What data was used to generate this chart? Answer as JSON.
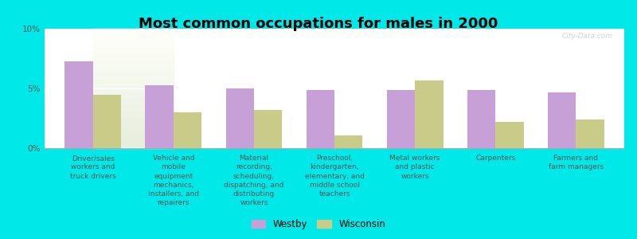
{
  "title": "Most common occupations for males in 2000",
  "categories": [
    "Driver/sales\nworkers and\ntruck drivers",
    "Vehicle and\nmobile\nequipment\nmechanics,\ninstallers, and\nrepairers",
    "Material\nrecording,\nscheduling,\ndispatching, and\ndistributing\nworkers",
    "Preschool,\nkindergarten,\nelementary, and\nmiddle school\nteachers",
    "Metal workers\nand plastic\nworkers",
    "Carpenters",
    "Farmers and\nfarm managers"
  ],
  "westby": [
    7.3,
    5.3,
    5.0,
    4.9,
    4.9,
    4.9,
    4.7
  ],
  "wisconsin": [
    4.5,
    3.0,
    3.2,
    1.1,
    5.7,
    2.2,
    2.4
  ],
  "westby_color": "#c8a0d8",
  "wisconsin_color": "#c8cc88",
  "background_color": "#00e8e8",
  "ylabel_ticks": [
    "0%",
    "5%",
    "10%"
  ],
  "yticks": [
    0,
    5,
    10
  ],
  "ylim": [
    0,
    10
  ],
  "bar_width": 0.35,
  "legend_labels": [
    "Westby",
    "Wisconsin"
  ],
  "title_fontsize": 13,
  "tick_fontsize": 7.5,
  "label_fontsize": 6.5,
  "watermark": "City-Data.com"
}
